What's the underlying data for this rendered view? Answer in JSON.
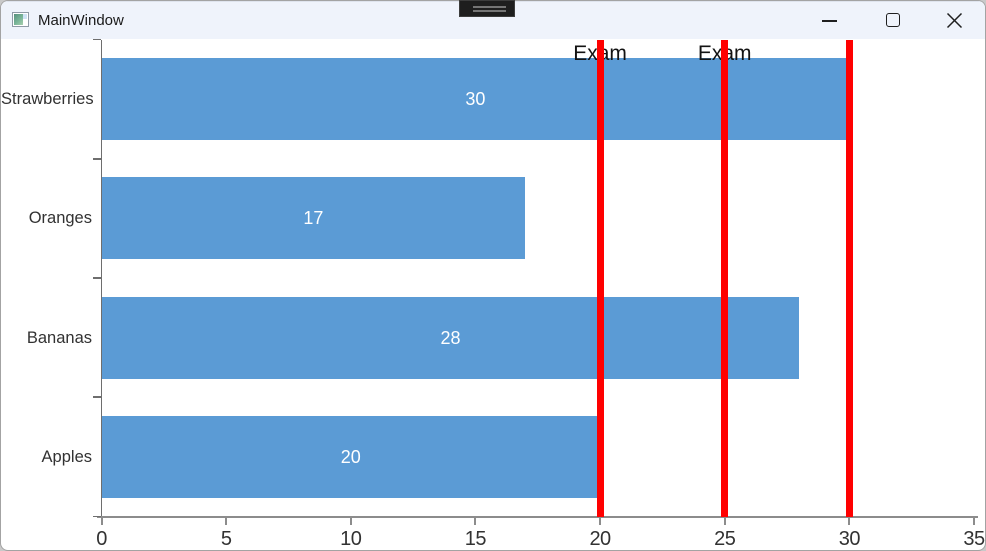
{
  "window": {
    "title": "MainWindow",
    "controls": {
      "minimize": "minimize",
      "maximize": "maximize",
      "close": "close"
    }
  },
  "chart_data": {
    "type": "bar",
    "orientation": "horizontal",
    "title": "",
    "xlabel": "",
    "ylabel": "",
    "categories": [
      "Strawberries",
      "Oranges",
      "Bananas",
      "Apples"
    ],
    "values": [
      30,
      17,
      28,
      20
    ],
    "value_labels": [
      "30",
      "17",
      "28",
      "20"
    ],
    "xlim": [
      0,
      35
    ],
    "x_ticks": [
      0,
      5,
      10,
      15,
      20,
      25,
      30,
      35
    ],
    "x_tick_labels": [
      "0",
      "5",
      "10",
      "15",
      "20",
      "25",
      "30",
      "35"
    ],
    "annotations": [
      {
        "x": 20,
        "label": "Exam"
      },
      {
        "x": 25,
        "label": "Exam"
      },
      {
        "x": 30,
        "label": ""
      }
    ],
    "legend": "none",
    "grid": "off",
    "colors": {
      "bar": "#5B9BD5",
      "annotation_line": "#FF0000",
      "bar_label_text": "#FFFFFF",
      "axis_line": "#8C8C8C",
      "tick_label": "#323232"
    }
  }
}
